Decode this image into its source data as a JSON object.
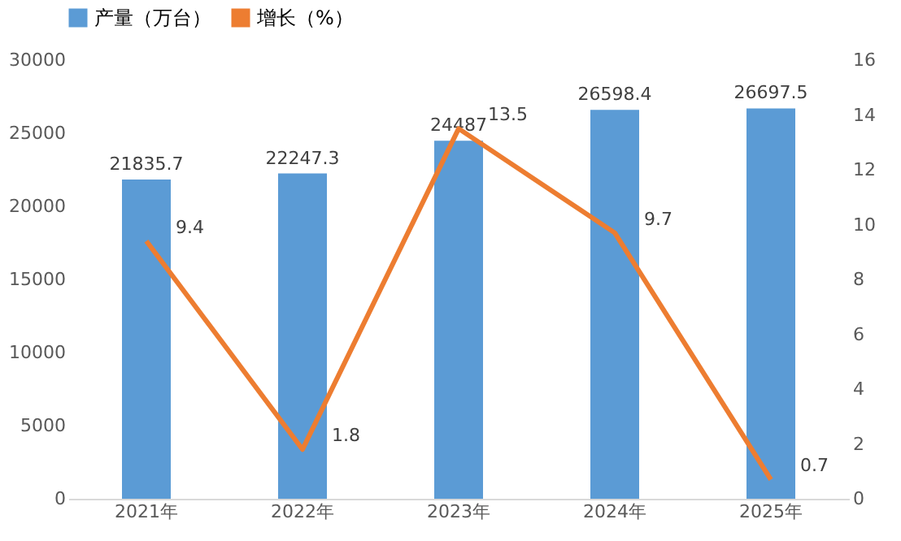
{
  "chart_data": {
    "type": "bar",
    "categories": [
      "2021年",
      "2022年",
      "2023年",
      "2024年",
      "2025年"
    ],
    "series": [
      {
        "name": "产量（万台）",
        "color": "#5b9bd5",
        "values": [
          21835.7,
          22247.3,
          24487,
          26598.4,
          26697.5
        ]
      },
      {
        "name": "增长（%）",
        "type": "line",
        "axis": "y2",
        "color": "#ed7d31",
        "values": [
          9.4,
          1.8,
          13.5,
          9.7,
          0.7
        ]
      }
    ],
    "ylim": [
      0,
      30000
    ],
    "yticks": [
      0,
      5000,
      10000,
      15000,
      20000,
      25000,
      30000
    ],
    "y2lim": [
      0,
      16
    ],
    "y2ticks": [
      0,
      2,
      4,
      6,
      8,
      10,
      12,
      14,
      16
    ],
    "data_labels": true,
    "grid": false,
    "legend": "top",
    "marker": "none",
    "line_style": "solid"
  }
}
